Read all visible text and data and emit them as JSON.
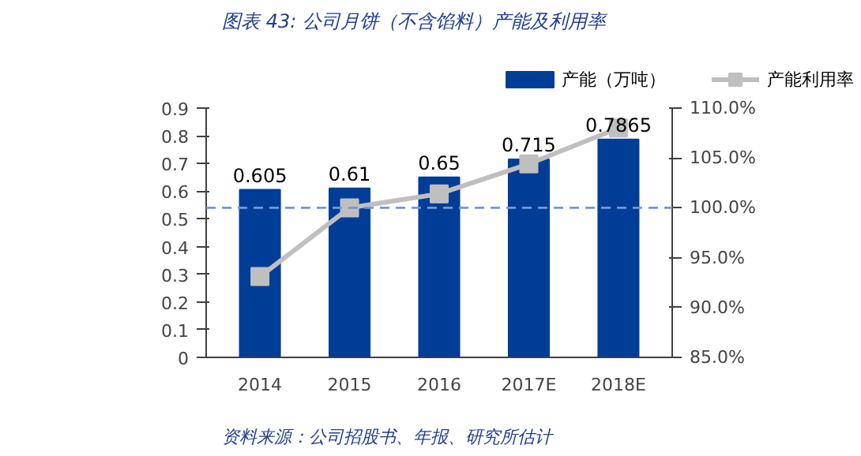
{
  "chart_data": {
    "type": "bar",
    "title": "图表 43:  公司月饼（不含馅料）产能及利用率",
    "categories": [
      "2014",
      "2015",
      "2016",
      "2017E",
      "2018E"
    ],
    "series": [
      {
        "name": "产能（万吨）",
        "color": "#003d96",
        "values": [
          0.605,
          0.61,
          0.65,
          0.715,
          0.7865
        ],
        "value_labels": [
          "0.605",
          "0.61",
          "0.65",
          "0.715",
          "0.7865"
        ]
      },
      {
        "name": "产能利用率",
        "type": "line",
        "axis": "y2",
        "color": "#bfbfbf",
        "marker": "square",
        "values": [
          93.1,
          100.0,
          101.4,
          104.4,
          108.0
        ]
      }
    ],
    "ylim": [
      0,
      0.9
    ],
    "yticks": [
      0,
      0.1,
      0.2,
      0.3,
      0.4,
      0.5,
      0.6,
      0.7,
      0.8,
      0.9
    ],
    "y2lim": [
      85,
      110
    ],
    "y2ticks": [
      {
        "value": 85,
        "label": "85.0%"
      },
      {
        "value": 90,
        "label": "90.0%"
      },
      {
        "value": 95,
        "label": "95.0%"
      },
      {
        "value": 100,
        "label": "100.0%"
      },
      {
        "value": 105,
        "label": "105.0%"
      },
      {
        "value": 110,
        "label": "110.0%"
      }
    ],
    "ref_lines": [
      {
        "axis": "y2",
        "value": 100,
        "color": "#6f9ad6",
        "line_style": "dashed"
      }
    ],
    "legend": "top",
    "grid": false,
    "annotations": [
      "资料来源：公司招股书、年报、研究所估计"
    ]
  }
}
